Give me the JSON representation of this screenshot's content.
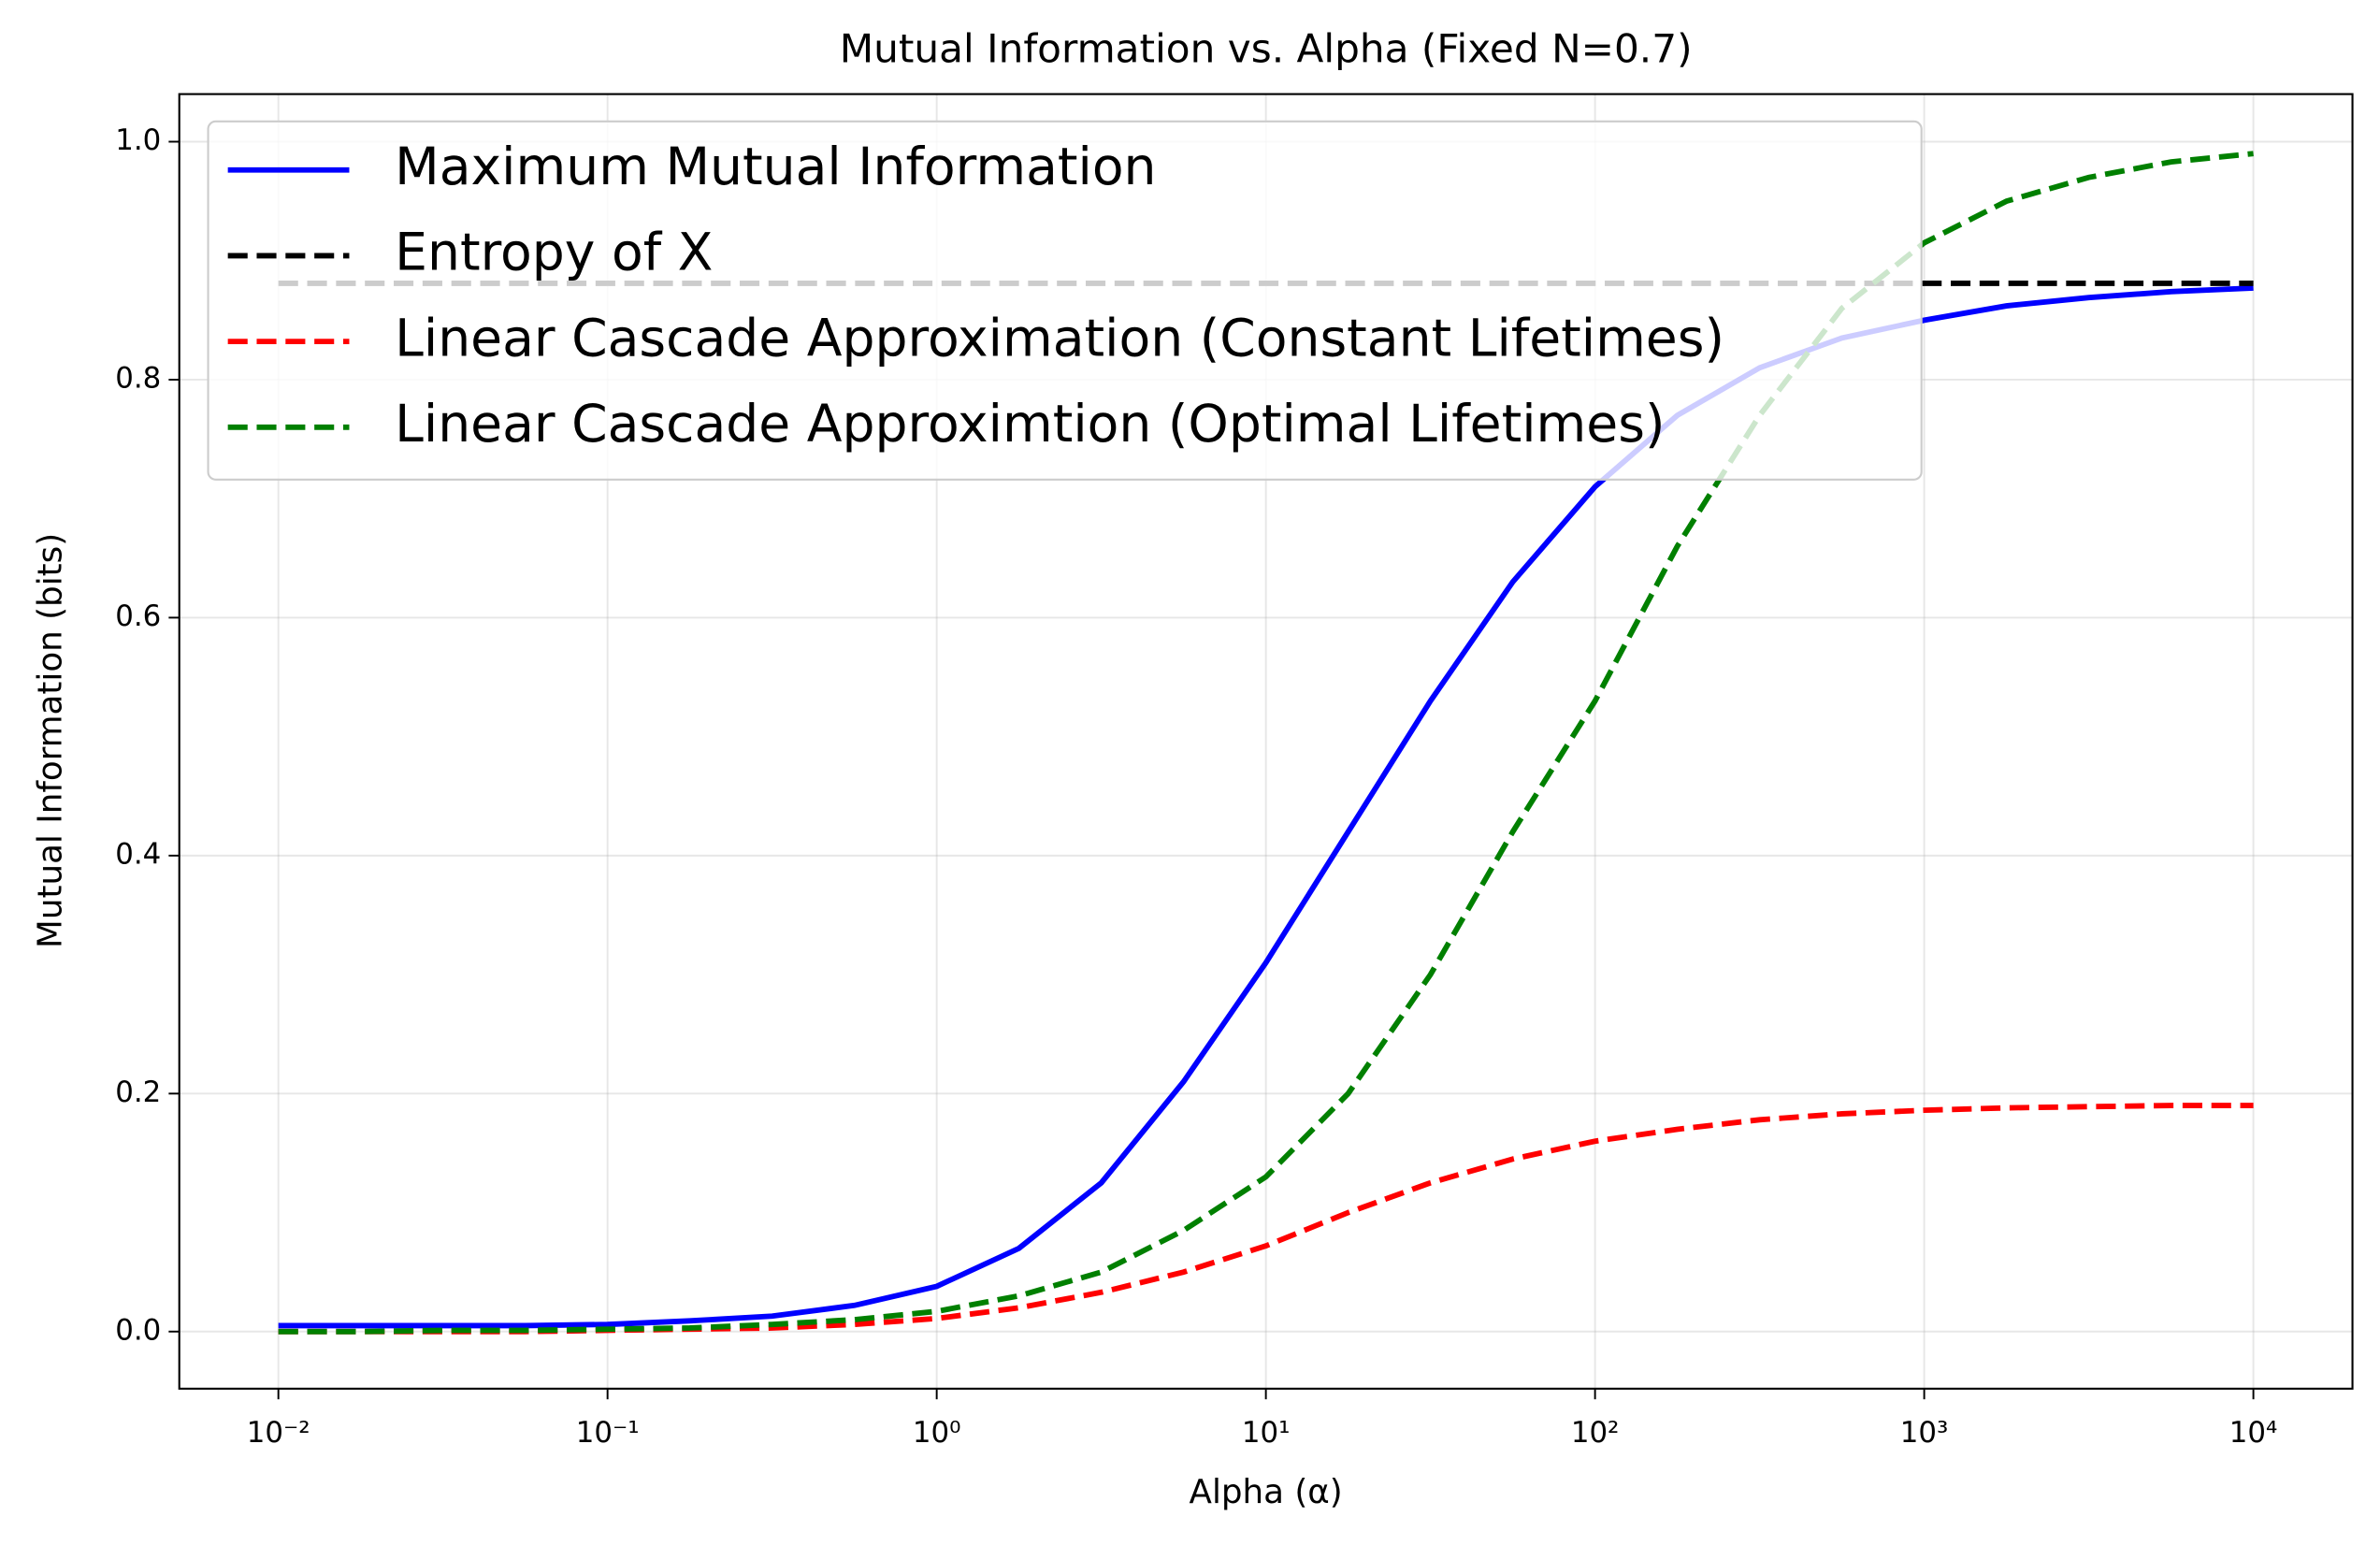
{
  "chart_data": {
    "type": "line",
    "title": "Mutual Information vs. Alpha (Fixed N=0.7)",
    "x_label": "Alpha (α)",
    "y_label": "Mutual Information (bits)",
    "x": [
      0.01,
      0.01778,
      0.03162,
      0.05623,
      0.1,
      0.1778,
      0.3162,
      0.5623,
      1,
      1.778,
      3.162,
      5.623,
      10,
      17.78,
      31.62,
      56.23,
      100,
      177.8,
      316.2,
      562.3,
      1000,
      1778,
      3162,
      5623,
      10000
    ],
    "series": [
      {
        "name": "Maximum Mutual Information",
        "color": "#0000ff",
        "linestyle": "solid",
        "values": [
          0.005,
          0.005,
          0.005,
          0.005,
          0.006,
          0.009,
          0.013,
          0.022,
          0.038,
          0.07,
          0.125,
          0.21,
          0.31,
          0.42,
          0.53,
          0.63,
          0.71,
          0.77,
          0.81,
          0.835,
          0.85,
          0.862,
          0.869,
          0.874,
          0.877
        ]
      },
      {
        "name": "Entropy of X",
        "color": "#000000",
        "linestyle": "dashed",
        "values": [
          0.881,
          0.881,
          0.881,
          0.881,
          0.881,
          0.881,
          0.881,
          0.881,
          0.881,
          0.881,
          0.881,
          0.881,
          0.881,
          0.881,
          0.881,
          0.881,
          0.881,
          0.881,
          0.881,
          0.881,
          0.881,
          0.881,
          0.881,
          0.881,
          0.881
        ]
      },
      {
        "name": "Linear Cascade Approximation (Constant Lifetimes)",
        "color": "#ff0000",
        "linestyle": "dashed",
        "values": [
          0,
          0,
          0,
          0,
          0.001,
          0.002,
          0.003,
          0.006,
          0.011,
          0.02,
          0.033,
          0.05,
          0.072,
          0.1,
          0.125,
          0.145,
          0.16,
          0.17,
          0.178,
          0.183,
          0.186,
          0.188,
          0.189,
          0.19,
          0.19
        ]
      },
      {
        "name": "Linear Cascade Approximtion (Optimal Lifetimes)",
        "color": "#008000",
        "linestyle": "dashed",
        "values": [
          0,
          0,
          0.001,
          0.001,
          0.002,
          0.003,
          0.006,
          0.01,
          0.017,
          0.03,
          0.05,
          0.085,
          0.13,
          0.2,
          0.3,
          0.42,
          0.53,
          0.66,
          0.77,
          0.86,
          0.915,
          0.95,
          0.97,
          0.983,
          0.99
        ]
      }
    ],
    "xscale": "log",
    "xlim": [
      0.005,
      20000
    ],
    "xticks": [
      {
        "value": 0.01,
        "label": "10⁻²"
      },
      {
        "value": 0.1,
        "label": "10⁻¹"
      },
      {
        "value": 1,
        "label": "10⁰"
      },
      {
        "value": 10,
        "label": "10¹"
      },
      {
        "value": 100,
        "label": "10²"
      },
      {
        "value": 1000,
        "label": "10³"
      },
      {
        "value": 10000,
        "label": "10⁴"
      }
    ],
    "ylim": [
      -0.048,
      1.04
    ],
    "yticks": [
      {
        "value": 0,
        "label": "0.0"
      },
      0.2,
      0.4,
      0.6,
      0.8,
      {
        "value": 1,
        "label": "1.0"
      }
    ],
    "grid": true,
    "legend": "upper-left"
  }
}
